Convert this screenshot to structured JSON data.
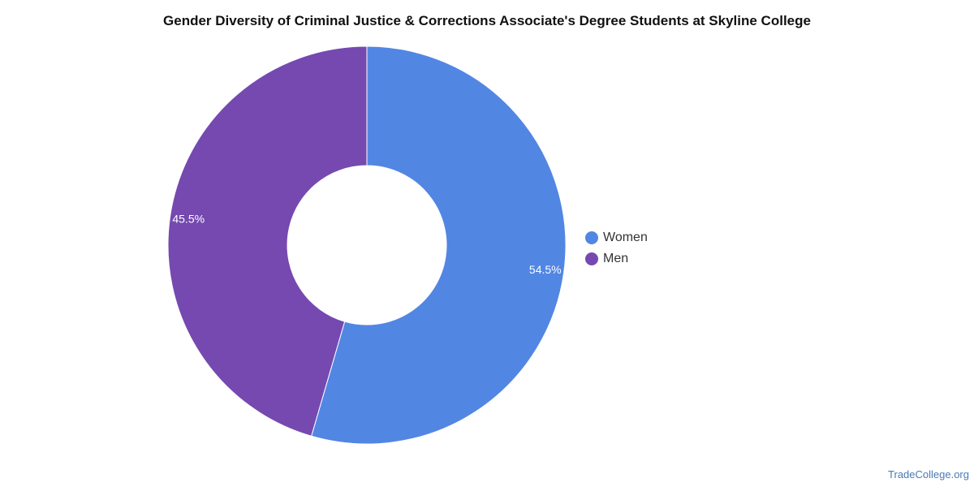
{
  "chart_data": {
    "type": "pie",
    "title": "Gender Diversity of Criminal Justice & Corrections Associate's Degree Students at Skyline College",
    "donut": true,
    "legend_position": "right",
    "series": [
      {
        "name": "Women",
        "value": 54.5,
        "label": "54.5%",
        "color": "#5286E3"
      },
      {
        "name": "Men",
        "value": 45.5,
        "label": "45.5%",
        "color": "#7549B0"
      }
    ]
  },
  "watermark": {
    "text": "TradeCollege.org",
    "color": "#4a7ab5"
  }
}
